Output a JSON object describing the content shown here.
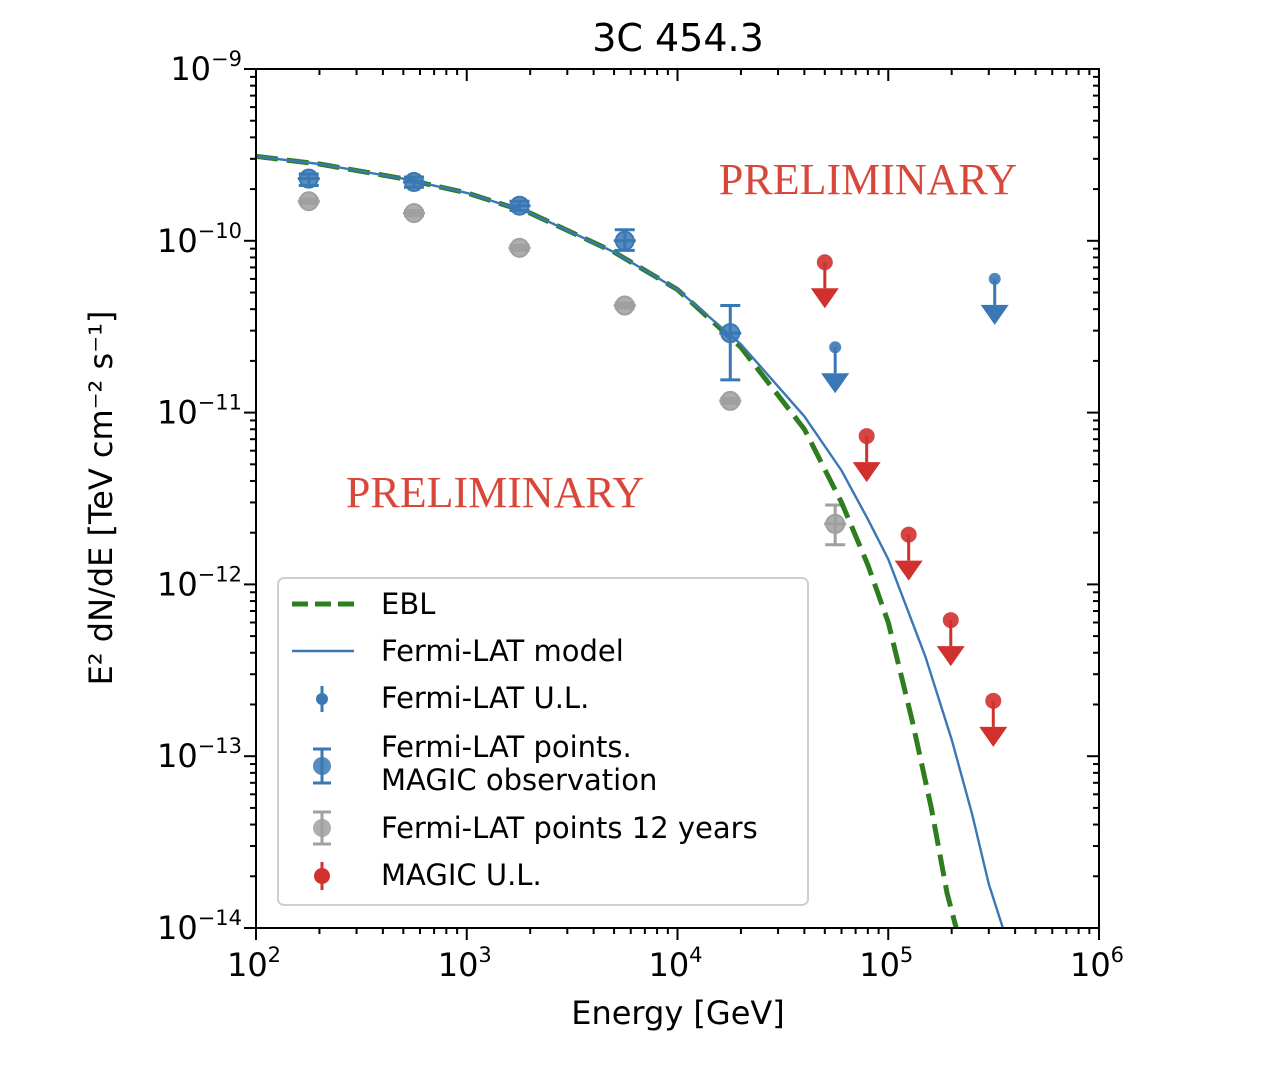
{
  "chart_data": {
    "type": "scatter",
    "title": "3C 454.3",
    "xlabel": "Energy [GeV]",
    "ylabel": "E² dN/dE [TeV cm⁻² s⁻¹]",
    "xscale": "log",
    "yscale": "log",
    "xlim": [
      100,
      1000000
    ],
    "ylim": [
      1e-14,
      1e-09
    ],
    "grid": false,
    "legend_position": "lower-left",
    "x_tick_exponents": [
      "2",
      "3",
      "4",
      "5",
      "6"
    ],
    "y_tick_exponents": [
      "−14",
      "−13",
      "−12",
      "−11",
      "−10",
      "−9"
    ],
    "annotations": [
      "PRELIMINARY",
      "PRELIMINARY"
    ],
    "colors": {
      "ebl": "#2e7d1f",
      "fermi_model": "#3a78b5",
      "fermi_ul": "#3a78b5",
      "fermi_points": "#3a78b5",
      "fermi_12yr": "#a0a0a0",
      "magic_ul": "#d0312d",
      "watermark": "#d9473a"
    },
    "series": [
      {
        "name": "EBL",
        "kind": "line",
        "style": "dashed",
        "x": [
          100,
          200,
          500,
          1000,
          2000,
          5000,
          10000,
          20000,
          40000,
          60000,
          80000,
          100000,
          130000,
          160000,
          190000,
          210000
        ],
        "y": [
          3.1e-10,
          2.8e-10,
          2.3e-10,
          1.9e-10,
          1.45e-10,
          8.6e-11,
          5.2e-11,
          2.4e-11,
          8e-12,
          3e-12,
          1.3e-12,
          6e-13,
          1.6e-13,
          5e-14,
          1.6e-14,
          1e-14
        ]
      },
      {
        "name": "Fermi-LAT model",
        "kind": "line",
        "style": "solid",
        "x": [
          100,
          200,
          500,
          1000,
          2000,
          5000,
          10000,
          20000,
          40000,
          60000,
          80000,
          100000,
          150000,
          200000,
          250000,
          300000,
          350000
        ],
        "y": [
          3.1e-10,
          2.8e-10,
          2.3e-10,
          1.9e-10,
          1.45e-10,
          8.6e-11,
          5.2e-11,
          2.5e-11,
          9.5e-12,
          4.6e-12,
          2.4e-12,
          1.4e-12,
          3.8e-13,
          1.25e-13,
          4.6e-14,
          1.8e-14,
          1e-14
        ]
      },
      {
        "name": "Fermi-LAT U.L.",
        "kind": "upper_limit",
        "x": [
          56000,
          320000
        ],
        "y": [
          2.4e-11,
          6e-11
        ]
      },
      {
        "name": "Fermi-LAT points.\nMAGIC observation",
        "kind": "points",
        "x": [
          178,
          562,
          1780,
          5620,
          17800
        ],
        "y": [
          2.3e-10,
          2.2e-10,
          1.6e-10,
          1e-10,
          2.9e-11
        ],
        "yerr_low": [
          2.1e-10,
          2.05e-10,
          1.5e-10,
          8.8e-11,
          1.55e-11
        ],
        "yerr_high": [
          2.45e-10,
          2.35e-10,
          1.7e-10,
          1.16e-10,
          4.2e-11
        ]
      },
      {
        "name": "Fermi-LAT points 12 years",
        "kind": "points",
        "x": [
          178,
          562,
          1780,
          5620,
          17800,
          56000
        ],
        "y": [
          1.7e-10,
          1.45e-10,
          9.1e-11,
          4.2e-11,
          1.17e-11,
          2.25e-12
        ],
        "yerr_low": [
          1.65e-10,
          1.4e-10,
          8.8e-11,
          4.05e-11,
          1.13e-11,
          1.7e-12
        ],
        "yerr_high": [
          1.75e-10,
          1.5e-10,
          9.4e-11,
          4.35e-11,
          1.21e-11,
          2.9e-12
        ]
      },
      {
        "name": "MAGIC U.L.",
        "kind": "upper_limit",
        "x": [
          50000,
          79000,
          125000,
          198000,
          315000
        ],
        "y": [
          7.5e-11,
          7.3e-12,
          1.95e-12,
          6.2e-13,
          2.1e-13
        ]
      }
    ]
  }
}
